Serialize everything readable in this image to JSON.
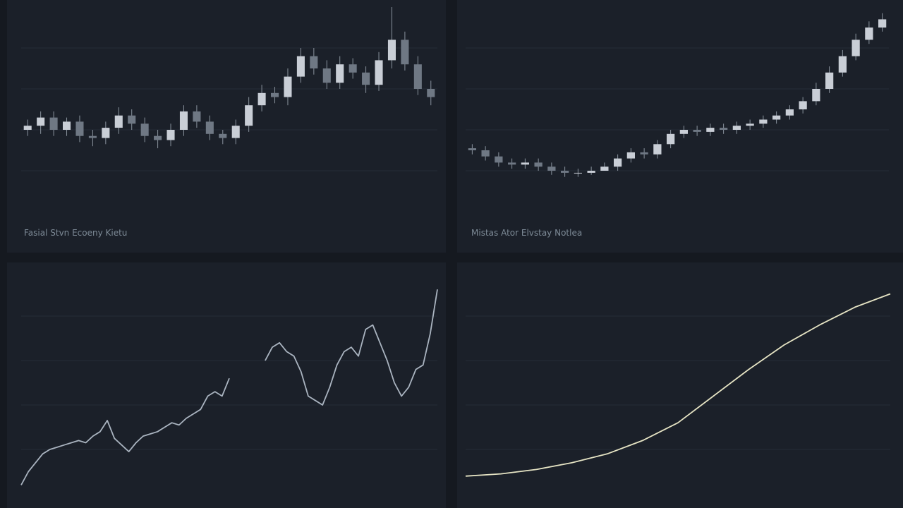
{
  "chart_data": [
    {
      "type": "candlestick",
      "caption": "Fasial Stvn Ecoeny Kietu",
      "color": "#c9ced6",
      "open": [
        40,
        42,
        46,
        40,
        44,
        37,
        36,
        41,
        47,
        43,
        37,
        35,
        40,
        49,
        44,
        38,
        36,
        42,
        52,
        58,
        56,
        66,
        76,
        70,
        63,
        72,
        68,
        62,
        74,
        84,
        72,
        60
      ],
      "high": [
        45,
        49,
        49,
        46,
        47,
        40,
        44,
        51,
        50,
        46,
        40,
        43,
        52,
        52,
        47,
        40,
        45,
        56,
        62,
        61,
        70,
        80,
        80,
        74,
        76,
        75,
        71,
        78,
        100,
        88,
        76,
        64
      ],
      "low": [
        37,
        38,
        37,
        37,
        34,
        32,
        33,
        38,
        40,
        34,
        31,
        32,
        37,
        41,
        35,
        33,
        33,
        39,
        49,
        53,
        52,
        63,
        67,
        60,
        60,
        65,
        58,
        59,
        70,
        69,
        57,
        52
      ],
      "close": [
        42,
        46,
        40,
        44,
        37,
        36,
        41,
        47,
        43,
        37,
        35,
        40,
        49,
        44,
        38,
        36,
        42,
        52,
        58,
        56,
        66,
        76,
        70,
        63,
        72,
        68,
        62,
        74,
        84,
        72,
        60,
        56
      ],
      "ylim": [
        0,
        100
      ],
      "yticks": [
        20,
        40,
        60,
        80
      ],
      "grid": true
    },
    {
      "type": "candlestick",
      "caption": "Mistas Ator Elvstay Notlea",
      "color": "#c9ced6",
      "open": [
        31,
        30,
        27,
        24,
        23,
        24,
        22,
        20,
        19,
        19,
        20,
        22,
        26,
        29,
        28,
        33,
        38,
        40,
        39,
        41,
        40,
        42,
        43,
        45,
        47,
        50,
        54,
        60,
        68,
        76,
        84,
        90
      ],
      "high": [
        33,
        32,
        29,
        26,
        26,
        26,
        24,
        22,
        21,
        22,
        24,
        28,
        31,
        31,
        35,
        40,
        42,
        42,
        43,
        43,
        44,
        45,
        47,
        49,
        52,
        56,
        63,
        71,
        79,
        87,
        93,
        97
      ],
      "low": [
        28,
        25,
        22,
        21,
        21,
        20,
        18,
        17,
        17,
        18,
        20,
        20,
        24,
        26,
        26,
        31,
        36,
        37,
        37,
        38,
        38,
        40,
        41,
        43,
        45,
        48,
        52,
        58,
        66,
        74,
        82,
        88
      ],
      "close": [
        30,
        27,
        24,
        23,
        24,
        22,
        20,
        19,
        19,
        20,
        22,
        26,
        29,
        28,
        33,
        38,
        40,
        39,
        41,
        40,
        42,
        43,
        45,
        47,
        50,
        54,
        60,
        68,
        76,
        84,
        90,
        94
      ],
      "ylim": [
        0,
        100
      ],
      "yticks": [
        20,
        40,
        60,
        80
      ],
      "grid": true
    },
    {
      "type": "line",
      "color": "#aab4c0",
      "values": [
        4,
        10,
        14,
        18,
        20,
        21,
        22,
        23,
        24,
        23,
        26,
        28,
        33,
        25,
        22,
        19,
        23,
        26,
        27,
        28,
        30,
        32,
        31,
        34,
        36,
        38,
        44,
        46,
        44,
        52,
        null,
        null,
        null,
        null,
        60,
        66,
        68,
        64,
        62,
        55,
        44,
        42,
        40,
        48,
        58,
        64,
        66,
        62,
        74,
        76,
        68,
        60,
        50,
        44,
        48,
        56,
        58,
        72,
        92
      ],
      "ylim": [
        0,
        100
      ],
      "yticks": [
        20,
        40,
        60,
        80
      ],
      "grid": true
    },
    {
      "type": "line",
      "color": "#e6e4c4",
      "values": [
        8,
        9,
        11,
        14,
        18,
        24,
        32,
        44,
        56,
        67,
        76,
        84,
        90
      ],
      "ylim": [
        0,
        100
      ],
      "yticks": [
        20,
        40,
        60,
        80
      ],
      "grid": true
    }
  ]
}
